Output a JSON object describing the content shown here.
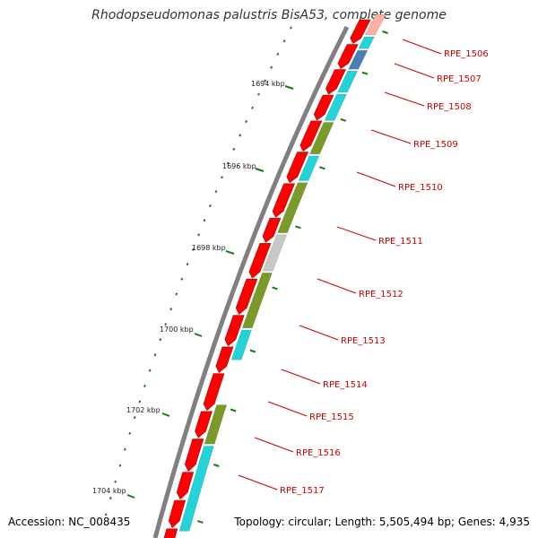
{
  "title": "Rhodopseudomonas palustris BisA53, complete genome",
  "footer": {
    "accession": "Accession: NC_008435",
    "topology": "Topology: circular; Length: 5,505,494 bp; Genes: 4,935"
  },
  "colors": {
    "backbone": "#808080",
    "forward_gene": "#ff0000",
    "label": "#cc0000",
    "tick": "#1a7a1a",
    "cat_cyan": "#22d3d8",
    "cat_olive": "#7a9a2a",
    "cat_gray": "#c8c8c8",
    "cat_blue": "#4a7fb5",
    "cat_pink": "#ffb0a0"
  },
  "scale_ticks": [
    {
      "label": "1694 kbp"
    },
    {
      "label": "1696 kbp"
    },
    {
      "label": "1698 kbp"
    },
    {
      "label": "1700 kbp"
    },
    {
      "label": "1702 kbp"
    },
    {
      "label": "1704 kbp"
    }
  ],
  "gene_labels": [
    {
      "label": "RPE_1506"
    },
    {
      "label": "RPE_1507"
    },
    {
      "label": "RPE_1508"
    },
    {
      "label": "RPE_1509"
    },
    {
      "label": "RPE_1510"
    },
    {
      "label": "RPE_1511"
    },
    {
      "label": "RPE_1512"
    },
    {
      "label": "RPE_1513"
    },
    {
      "label": "RPE_1514"
    },
    {
      "label": "RPE_1515"
    },
    {
      "label": "RPE_1516"
    },
    {
      "label": "RPE_1517"
    }
  ]
}
